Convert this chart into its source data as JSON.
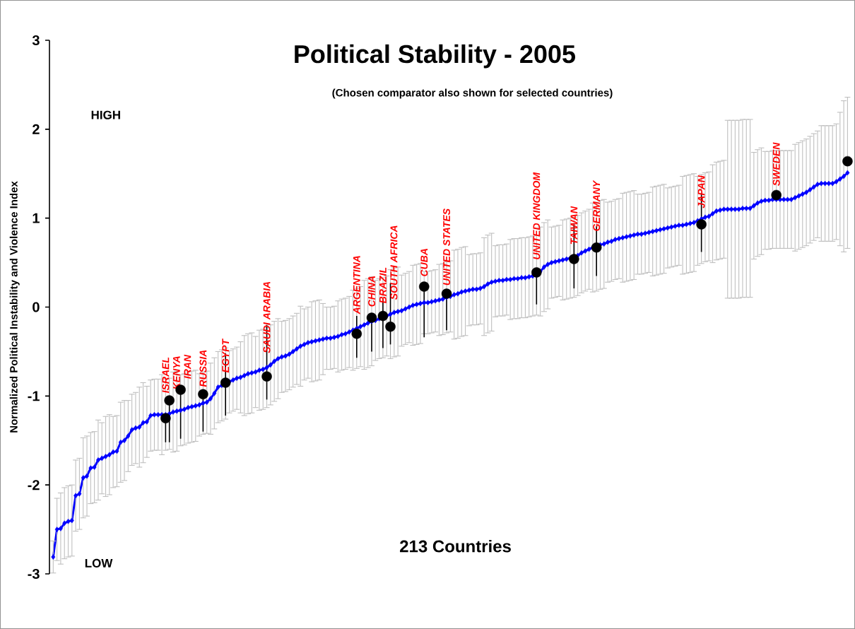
{
  "chart_data": {
    "type": "line",
    "title": "Political Stability - 2005",
    "subtitle": "(Chosen comparator also shown for selected countries)",
    "ylabel": "Normalized Political Instability and Violence Index",
    "categories": [
      null,
      null,
      null,
      null,
      null,
      null,
      null,
      null,
      null,
      null,
      null,
      null,
      null,
      null,
      null,
      null,
      null,
      null,
      null,
      null,
      null,
      null,
      null,
      null,
      null,
      null,
      null,
      null,
      null,
      null,
      null,
      null,
      null,
      null,
      null,
      null,
      null,
      null,
      null,
      null,
      null,
      null,
      null,
      null,
      null,
      null,
      null,
      null,
      null,
      null,
      null,
      null,
      null,
      null,
      null,
      null,
      null,
      null,
      null,
      null,
      null,
      null,
      null,
      null,
      null,
      null,
      null,
      null,
      null,
      null,
      null,
      null,
      null,
      null,
      null,
      null,
      null,
      null,
      null,
      null,
      null,
      null,
      null,
      null,
      null,
      null,
      null,
      null,
      null,
      null,
      null,
      null,
      null,
      null,
      null,
      null,
      null,
      null,
      null,
      null,
      null,
      null,
      null,
      null,
      null,
      null,
      null,
      null,
      null,
      null,
      null,
      null,
      null,
      null,
      null,
      null,
      null,
      null,
      null,
      null,
      null,
      null,
      null,
      null,
      null,
      null,
      null,
      null,
      null,
      null,
      null,
      null,
      null,
      null,
      null,
      null,
      null,
      null,
      null,
      null,
      null,
      null,
      null,
      null,
      null,
      null,
      null,
      null,
      null,
      null,
      null,
      null,
      null,
      null,
      null,
      null,
      null,
      null,
      null,
      null,
      null,
      null,
      null,
      null,
      null,
      null,
      null,
      null,
      null,
      null,
      null,
      null,
      null,
      null,
      null,
      null,
      null,
      null,
      null,
      null,
      null,
      null,
      null,
      null,
      null,
      null,
      null,
      null,
      null,
      null,
      null,
      null,
      null,
      null,
      null,
      null,
      null,
      null,
      null,
      null,
      null,
      null,
      null,
      null,
      null,
      null,
      null,
      null,
      null,
      null,
      null,
      null,
      null
    ],
    "ylim": [
      -3,
      3
    ],
    "yticks": [
      -3,
      -2,
      -1,
      0,
      1,
      2,
      3
    ],
    "tick_labels": "y",
    "series": [
      {
        "marker": "diamond",
        "color": "#0000ff",
        "values": [
          -2.81,
          -2.5,
          -2.49,
          -2.43,
          -2.41,
          -2.4,
          -2.12,
          -2.1,
          -1.92,
          -1.9,
          -1.81,
          -1.8,
          -1.72,
          -1.7,
          -1.68,
          -1.66,
          -1.63,
          -1.62,
          -1.52,
          -1.5,
          -1.45,
          -1.38,
          -1.36,
          -1.35,
          -1.3,
          -1.29,
          -1.22,
          -1.21,
          -1.21,
          -1.21,
          -1.21,
          -1.2,
          -1.18,
          -1.17,
          -1.16,
          -1.15,
          -1.13,
          -1.12,
          -1.11,
          -1.1,
          -1.08,
          -1.07,
          -1.03,
          -0.97,
          -0.9,
          -0.88,
          -0.86,
          -0.84,
          -0.82,
          -0.8,
          -0.79,
          -0.77,
          -0.75,
          -0.74,
          -0.73,
          -0.71,
          -0.7,
          -0.68,
          -0.65,
          -0.61,
          -0.58,
          -0.56,
          -0.55,
          -0.53,
          -0.5,
          -0.47,
          -0.44,
          -0.42,
          -0.4,
          -0.39,
          -0.38,
          -0.37,
          -0.36,
          -0.35,
          -0.35,
          -0.34,
          -0.33,
          -0.31,
          -0.3,
          -0.28,
          -0.26,
          -0.24,
          -0.22,
          -0.2,
          -0.18,
          -0.16,
          -0.15,
          -0.13,
          -0.12,
          -0.1,
          -0.08,
          -0.06,
          -0.05,
          -0.04,
          -0.02,
          0.0,
          0.02,
          0.03,
          0.04,
          0.05,
          0.05,
          0.06,
          0.07,
          0.08,
          0.09,
          0.11,
          0.12,
          0.14,
          0.15,
          0.17,
          0.18,
          0.19,
          0.2,
          0.2,
          0.21,
          0.23,
          0.26,
          0.28,
          0.29,
          0.3,
          0.3,
          0.31,
          0.31,
          0.32,
          0.32,
          0.33,
          0.33,
          0.34,
          0.35,
          0.36,
          0.4,
          0.45,
          0.48,
          0.5,
          0.51,
          0.52,
          0.53,
          0.54,
          0.55,
          0.56,
          0.58,
          0.61,
          0.63,
          0.65,
          0.67,
          0.68,
          0.7,
          0.71,
          0.73,
          0.74,
          0.76,
          0.77,
          0.78,
          0.79,
          0.8,
          0.81,
          0.82,
          0.82,
          0.83,
          0.84,
          0.85,
          0.86,
          0.87,
          0.88,
          0.89,
          0.9,
          0.91,
          0.92,
          0.92,
          0.93,
          0.94,
          0.95,
          0.97,
          0.99,
          1.01,
          1.02,
          1.05,
          1.08,
          1.09,
          1.1,
          1.1,
          1.1,
          1.1,
          1.1,
          1.11,
          1.11,
          1.11,
          1.14,
          1.17,
          1.19,
          1.2,
          1.2,
          1.21,
          1.21,
          1.21,
          1.21,
          1.21,
          1.21,
          1.23,
          1.25,
          1.27,
          1.29,
          1.32,
          1.35,
          1.38,
          1.39,
          1.39,
          1.39,
          1.39,
          1.41,
          1.44,
          1.47,
          1.51
        ],
        "errors": [
          0.18,
          0.35,
          0.4,
          0.4,
          0.4,
          0.4,
          0.4,
          0.4,
          0.45,
          0.45,
          0.4,
          0.4,
          0.45,
          0.4,
          0.45,
          0.45,
          0.4,
          0.4,
          0.45,
          0.45,
          0.4,
          0.4,
          0.4,
          0.45,
          0.45,
          0.4,
          0.4,
          0.4,
          0.4,
          0.45,
          0.4,
          0.4,
          0.45,
          0.45,
          0.4,
          0.4,
          0.4,
          0.4,
          0.4,
          0.35,
          0.35,
          0.35,
          0.4,
          0.4,
          0.4,
          0.4,
          0.4,
          0.35,
          0.35,
          0.35,
          0.4,
          0.45,
          0.45,
          0.45,
          0.4,
          0.45,
          0.45,
          0.45,
          0.45,
          0.45,
          0.45,
          0.4,
          0.4,
          0.4,
          0.4,
          0.4,
          0.45,
          0.4,
          0.4,
          0.45,
          0.45,
          0.45,
          0.4,
          0.35,
          0.35,
          0.35,
          0.4,
          0.4,
          0.4,
          0.4,
          0.45,
          0.45,
          0.45,
          0.5,
          0.5,
          0.5,
          0.45,
          0.45,
          0.45,
          0.45,
          0.5,
          0.5,
          0.5,
          0.4,
          0.4,
          0.4,
          0.45,
          0.45,
          0.45,
          0.35,
          0.35,
          0.35,
          0.35,
          0.4,
          0.4,
          0.4,
          0.4,
          0.5,
          0.5,
          0.5,
          0.5,
          0.4,
          0.4,
          0.4,
          0.4,
          0.55,
          0.55,
          0.55,
          0.4,
          0.4,
          0.4,
          0.4,
          0.45,
          0.45,
          0.45,
          0.45,
          0.45,
          0.45,
          0.45,
          0.45,
          0.5,
          0.5,
          0.5,
          0.4,
          0.4,
          0.4,
          0.45,
          0.45,
          0.45,
          0.45,
          0.45,
          0.45,
          0.45,
          0.45,
          0.5,
          0.5,
          0.5,
          0.5,
          0.45,
          0.45,
          0.45,
          0.45,
          0.5,
          0.5,
          0.5,
          0.5,
          0.45,
          0.45,
          0.45,
          0.45,
          0.5,
          0.5,
          0.5,
          0.5,
          0.45,
          0.45,
          0.45,
          0.45,
          0.55,
          0.55,
          0.55,
          0.55,
          0.5,
          0.5,
          0.5,
          0.5,
          0.55,
          0.55,
          0.55,
          0.55,
          1.0,
          1.0,
          1.0,
          1.0,
          1.0,
          1.0,
          1.0,
          0.6,
          0.6,
          0.6,
          0.55,
          0.55,
          0.55,
          0.55,
          0.55,
          0.55,
          0.55,
          0.55,
          0.6,
          0.6,
          0.6,
          0.6,
          0.6,
          0.6,
          0.6,
          0.65,
          0.65,
          0.65,
          0.65,
          0.65,
          0.75,
          0.85,
          0.85
        ]
      },
      {
        "type": "scatter",
        "marker": "circle",
        "color": "#000000",
        "values": [
          null,
          null,
          null,
          null,
          null,
          null,
          null,
          null,
          null,
          null,
          null,
          null,
          null,
          null,
          null,
          null,
          null,
          null,
          null,
          null,
          null,
          null,
          null,
          null,
          null,
          null,
          null,
          null,
          null,
          null,
          -1.25,
          -1.05,
          null,
          null,
          -0.93,
          null,
          null,
          null,
          null,
          null,
          -0.98,
          null,
          null,
          null,
          null,
          null,
          -0.85,
          null,
          null,
          null,
          null,
          null,
          null,
          null,
          null,
          null,
          null,
          -0.78,
          null,
          null,
          null,
          null,
          null,
          null,
          null,
          null,
          null,
          null,
          null,
          null,
          null,
          null,
          null,
          null,
          null,
          null,
          null,
          null,
          null,
          null,
          null,
          -0.3,
          null,
          null,
          null,
          -0.12,
          null,
          null,
          -0.1,
          null,
          -0.22,
          null,
          null,
          null,
          null,
          null,
          null,
          null,
          null,
          0.23,
          null,
          null,
          null,
          null,
          null,
          0.15,
          null,
          null,
          null,
          null,
          null,
          null,
          null,
          null,
          null,
          null,
          null,
          null,
          null,
          null,
          null,
          null,
          null,
          null,
          null,
          null,
          null,
          null,
          null,
          0.39,
          null,
          null,
          null,
          null,
          null,
          null,
          null,
          null,
          null,
          0.54,
          null,
          null,
          null,
          null,
          null,
          0.67,
          null,
          null,
          null,
          null,
          null,
          null,
          null,
          null,
          null,
          null,
          null,
          null,
          null,
          null,
          null,
          null,
          null,
          null,
          null,
          null,
          null,
          null,
          null,
          null,
          null,
          null,
          null,
          0.93,
          null,
          null,
          null,
          null,
          null,
          null,
          null,
          null,
          null,
          null,
          null,
          null,
          null,
          null,
          null,
          null,
          null,
          null,
          null,
          1.26,
          null,
          null,
          null,
          null,
          null,
          null,
          null,
          null,
          null,
          null,
          null,
          null,
          null,
          null,
          null,
          null,
          null,
          null,
          1.64
        ],
        "errors": [
          null,
          null,
          null,
          null,
          null,
          null,
          null,
          null,
          null,
          null,
          null,
          null,
          null,
          null,
          null,
          null,
          null,
          null,
          null,
          null,
          null,
          null,
          null,
          null,
          null,
          null,
          null,
          null,
          null,
          null,
          [
            -1.52,
            -1.25
          ],
          [
            -1.52,
            -1.05
          ],
          null,
          null,
          [
            -1.48,
            -0.93
          ],
          null,
          null,
          null,
          null,
          null,
          [
            -1.4,
            -0.98
          ],
          null,
          null,
          null,
          null,
          null,
          [
            -1.22,
            -0.52
          ],
          null,
          null,
          null,
          null,
          null,
          null,
          null,
          null,
          null,
          null,
          [
            -1.04,
            -0.2
          ],
          null,
          null,
          null,
          null,
          null,
          null,
          null,
          null,
          null,
          null,
          null,
          null,
          null,
          null,
          null,
          null,
          null,
          null,
          null,
          null,
          null,
          null,
          null,
          [
            -0.57,
            -0.1
          ],
          null,
          null,
          null,
          [
            -0.5,
            -0.12
          ],
          null,
          null,
          [
            -0.46,
            0.09
          ],
          null,
          [
            -0.42,
            0.27
          ],
          null,
          null,
          null,
          null,
          null,
          null,
          null,
          null,
          [
            -0.34,
            0.23
          ],
          null,
          null,
          null,
          null,
          null,
          [
            -0.26,
            0.15
          ],
          null,
          null,
          null,
          null,
          null,
          null,
          null,
          null,
          null,
          null,
          null,
          null,
          null,
          null,
          null,
          null,
          null,
          null,
          null,
          null,
          null,
          null,
          null,
          [
            0.03,
            0.39
          ],
          null,
          null,
          null,
          null,
          null,
          null,
          null,
          null,
          null,
          [
            0.21,
            0.93
          ],
          null,
          null,
          null,
          null,
          null,
          [
            0.35,
            0.91
          ],
          null,
          null,
          null,
          null,
          null,
          null,
          null,
          null,
          null,
          null,
          null,
          null,
          null,
          null,
          null,
          null,
          null,
          null,
          null,
          null,
          null,
          null,
          null,
          null,
          null,
          null,
          null,
          [
            0.62,
            1.28
          ],
          null,
          null,
          null,
          null,
          null,
          null,
          null,
          null,
          null,
          null,
          null,
          null,
          null,
          null,
          null,
          null,
          null,
          null,
          null,
          null,
          null,
          null,
          null,
          null,
          null,
          null,
          null,
          null,
          null,
          null,
          null,
          null,
          null,
          null,
          null,
          null,
          null,
          null,
          null
        ]
      }
    ],
    "annotations": [
      {
        "text": "ISRAEL",
        "y": -0.97
      },
      {
        "text": "KENYA",
        "y": -0.93
      },
      {
        "text": "IRAN",
        "y": -0.81
      },
      {
        "text": "RUSSIA",
        "y": -0.9
      },
      {
        "text": "EGYPT",
        "y": -0.74
      },
      {
        "text": "SAUDI ARABIA",
        "y": -0.52
      },
      {
        "text": "ARGENTINA",
        "y": -0.08
      },
      {
        "text": "CHINA",
        "y": 0.0
      },
      {
        "text": "BRAZIL",
        "y": 0.04
      },
      {
        "text": "SOUTH AFRICA",
        "y": 0.08
      },
      {
        "text": "CUBA",
        "y": 0.34
      },
      {
        "text": "UNITED STATES",
        "y": 0.24
      },
      {
        "text": "UNITED KINGDOM",
        "y": 0.53
      },
      {
        "text": "TAIWAN",
        "y": 0.7
      },
      {
        "text": "GERMANY",
        "y": 0.85
      },
      {
        "text": "JAPAN",
        "y": 1.11
      },
      {
        "text": "SWEDEN",
        "y": 1.36
      },
      "HIGH",
      "LOW",
      "213 Countries"
    ]
  }
}
